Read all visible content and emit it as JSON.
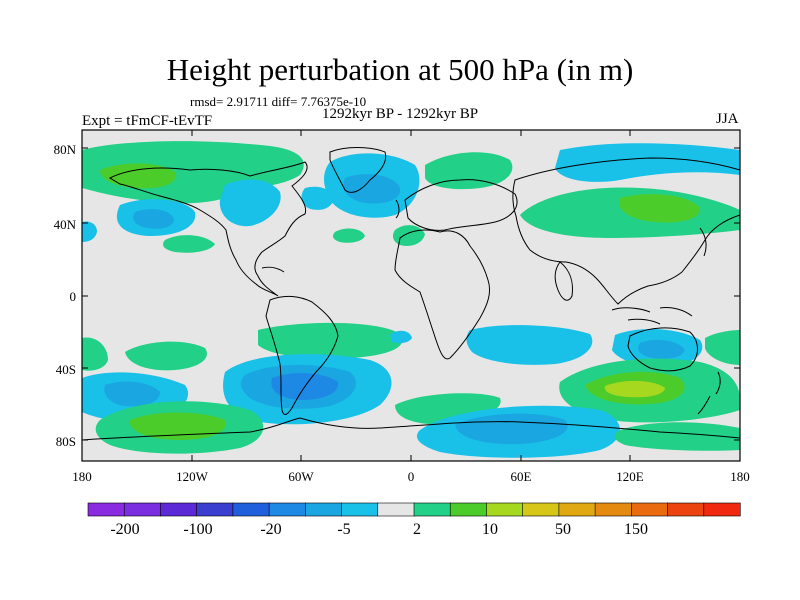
{
  "header": {
    "title": "Height perturbation at 500 hPa (in m)",
    "stats": "rmsd= 2.91711 diff= 7.76375e-10",
    "period": "1292kyr BP - 1292kyr BP",
    "experiment": "Expt = tFmCF-tEvTF",
    "season": "JJA"
  },
  "axes": {
    "y_labels": [
      "80N",
      "40N",
      "0",
      "40S",
      "80S"
    ],
    "x_labels": [
      "180",
      "120W",
      "60W",
      "0",
      "60E",
      "120E",
      "180"
    ]
  },
  "colorbar": {
    "colors": [
      "#8a2be2",
      "#7b2ee0",
      "#5c29d6",
      "#3b3fd0",
      "#1f5fdb",
      "#1e88e5",
      "#1aa6e0",
      "#19c0e8",
      "#e6e6e6",
      "#22d088",
      "#4ccc2a",
      "#a6d81f",
      "#d6c617",
      "#e0a812",
      "#e58a10",
      "#ea6a10",
      "#ec4410",
      "#f02810"
    ],
    "labels": [
      "-200",
      "-100",
      "-20",
      "-5",
      "2",
      "10",
      "50",
      "150"
    ]
  },
  "palette": {
    "background": "#e6e6e6",
    "blue_light": "#19c0e8",
    "blue_mid": "#1aa6e0",
    "blue_dark": "#1e88e5",
    "green": "#22d088",
    "green_mid": "#4ccc2a",
    "yellow_green": "#a6d81f"
  }
}
